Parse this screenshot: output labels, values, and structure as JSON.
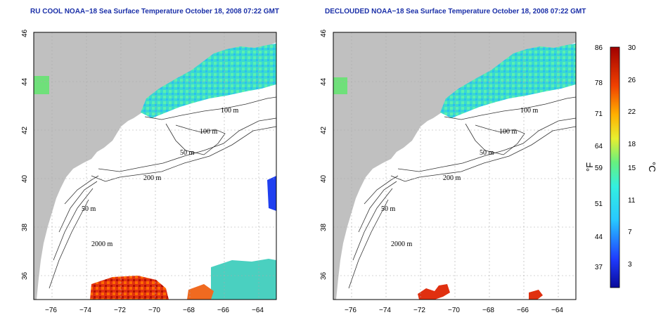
{
  "maps": [
    {
      "id": "left",
      "title": "RU COOL NOAA−18 Sea Surface Temperature October 18, 2008 07:22 GMT"
    },
    {
      "id": "right",
      "title": "DECLOUDED NOAA−18 Sea Surface Temperature October 18, 2008 07:22 GMT"
    }
  ],
  "axes": {
    "lon_ticks": [
      "−76",
      "−74",
      "−72",
      "−70",
      "−68",
      "−66",
      "−64"
    ],
    "lat_ticks": [
      "36",
      "38",
      "40",
      "42",
      "44",
      "46"
    ],
    "lon_range": [
      -77,
      -63
    ],
    "lat_range": [
      35,
      46
    ]
  },
  "contour_labels": [
    "100 m",
    "100 m",
    "50 m",
    "200 m",
    "50 m",
    "2000 m"
  ],
  "colorbar": {
    "fahrenheit_ticks": [
      "86",
      "78",
      "71",
      "64",
      "59",
      "51",
      "44",
      "37"
    ],
    "celsius_ticks": [
      "30",
      "26",
      "22",
      "18",
      "15",
      "11",
      "7",
      "3"
    ],
    "fahrenheit_unit": "°F",
    "celsius_unit": "°C",
    "range_c": [
      0,
      30
    ]
  },
  "colors": {
    "land": "#c0c0c0",
    "ocean": "#ffffff",
    "title": "#1a2fa8",
    "grid": "#aaaaaa"
  }
}
